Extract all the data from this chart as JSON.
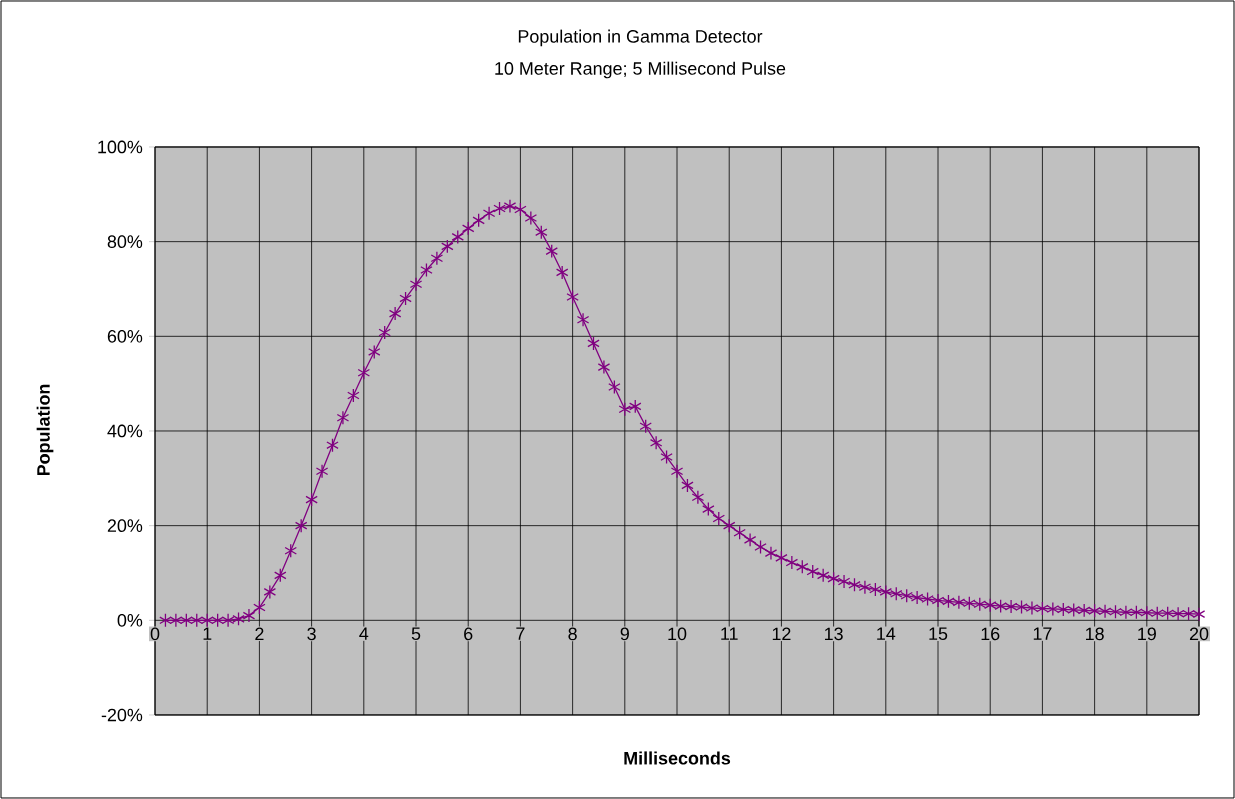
{
  "chart_data": {
    "type": "line",
    "title": "Population in Gamma Detector",
    "subtitle": "10 Meter Range; 5 Millisecond Pulse",
    "xlabel": "Milliseconds",
    "ylabel": "Population",
    "x": [
      0.2,
      0.4,
      0.6,
      0.8,
      1.0,
      1.2,
      1.4,
      1.6,
      1.8,
      2.0,
      2.2,
      2.4,
      2.6,
      2.8,
      3.0,
      3.2,
      3.4,
      3.6,
      3.8,
      4.0,
      4.2,
      4.4,
      4.6,
      4.8,
      5.0,
      5.2,
      5.4,
      5.6,
      5.8,
      6.0,
      6.2,
      6.4,
      6.6,
      6.8,
      7.0,
      7.2,
      7.4,
      7.6,
      7.8,
      8.0,
      8.2,
      8.4,
      8.6,
      8.8,
      9.0,
      9.2,
      9.4,
      9.6,
      9.8,
      10.0,
      10.2,
      10.4,
      10.6,
      10.8,
      11.0,
      11.2,
      11.4,
      11.6,
      11.8,
      12.0,
      12.2,
      12.4,
      12.6,
      12.8,
      13.0,
      13.2,
      13.4,
      13.6,
      13.8,
      14.0,
      14.2,
      14.4,
      14.6,
      14.8,
      15.0,
      15.2,
      15.4,
      15.6,
      15.8,
      16.0,
      16.2,
      16.4,
      16.6,
      16.8,
      17.0,
      17.2,
      17.4,
      17.6,
      17.8,
      18.0,
      18.2,
      18.4,
      18.6,
      18.8,
      19.0,
      19.2,
      19.4,
      19.6,
      19.8,
      20.0
    ],
    "series": [
      {
        "color": "#800080",
        "values": [
          0,
          0,
          0,
          0,
          0,
          0,
          0,
          0.3,
          1,
          2.7,
          6,
          9.5,
          14.7,
          20,
          25.5,
          31.5,
          37,
          42.8,
          47.5,
          52.3,
          56.7,
          60.8,
          64.8,
          68,
          71,
          74,
          76.5,
          79,
          81,
          82.8,
          84.5,
          86,
          87,
          87.5,
          86.8,
          85,
          82,
          78,
          73.5,
          68.3,
          63.5,
          58.5,
          53.5,
          49.3,
          44.6,
          45.2,
          41,
          37.5,
          34.5,
          31.5,
          28.5,
          26,
          23.5,
          21.5,
          20,
          18.5,
          17,
          15.5,
          14.2,
          13.2,
          12.2,
          11.3,
          10.3,
          9.5,
          8.8,
          8.2,
          7.5,
          7,
          6.5,
          6,
          5.6,
          5.2,
          4.8,
          4.5,
          4.2,
          4,
          3.8,
          3.6,
          3.4,
          3.2,
          3,
          2.9,
          2.8,
          2.6,
          2.5,
          2.4,
          2.3,
          2.2,
          2.1,
          2,
          1.9,
          1.8,
          1.7,
          1.7,
          1.6,
          1.5,
          1.5,
          1.4,
          1.4,
          1.3
        ]
      }
    ],
    "xlim": [
      0,
      20
    ],
    "ylim": [
      -20,
      100
    ],
    "xticks": [
      0,
      1,
      2,
      3,
      4,
      5,
      6,
      7,
      8,
      9,
      10,
      11,
      12,
      13,
      14,
      15,
      16,
      17,
      18,
      19,
      20
    ],
    "yticks": [
      {
        "value": -20,
        "label": "-20%"
      },
      {
        "value": 0,
        "label": "0%"
      },
      {
        "value": 20,
        "label": "20%"
      },
      {
        "value": 40,
        "label": "40%"
      },
      {
        "value": 60,
        "label": "60%"
      },
      {
        "value": 80,
        "label": "80%"
      },
      {
        "value": 100,
        "label": "100%"
      }
    ],
    "grid": true,
    "marker": "cross"
  }
}
